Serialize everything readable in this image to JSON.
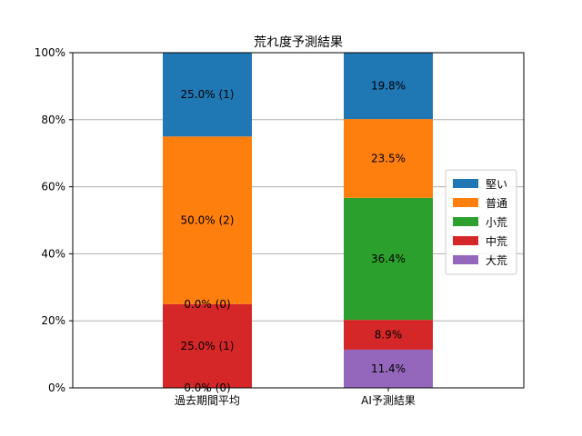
{
  "chart_data": {
    "type": "bar",
    "stacked": true,
    "title": "荒れ度予測結果",
    "xlabel": "",
    "ylabel": "",
    "categories": [
      "過去期間平均",
      "AI予測結果"
    ],
    "ylim": [
      0,
      100
    ],
    "yticks": [
      "0%",
      "20%",
      "40%",
      "60%",
      "80%",
      "100%"
    ],
    "grid": "horizontal",
    "legend_position": "right",
    "series": [
      {
        "name": "大荒",
        "color": "#9467bd",
        "values": [
          0.0,
          11.4
        ],
        "labels": [
          "0.0% (0)",
          "11.4%"
        ]
      },
      {
        "name": "中荒",
        "color": "#d62728",
        "values": [
          25.0,
          8.9
        ],
        "labels": [
          "25.0% (1)",
          "8.9%"
        ]
      },
      {
        "name": "小荒",
        "color": "#2ca02c",
        "values": [
          0.0,
          36.4
        ],
        "labels": [
          "0.0% (0)",
          "36.4%"
        ]
      },
      {
        "name": "普通",
        "color": "#ff7f0e",
        "values": [
          50.0,
          23.5
        ],
        "labels": [
          "50.0% (2)",
          "23.5%"
        ]
      },
      {
        "name": "堅い",
        "color": "#1f77b4",
        "values": [
          25.0,
          19.8
        ],
        "labels": [
          "25.0% (1)",
          "19.8%"
        ]
      }
    ],
    "legend_order": [
      "堅い",
      "普通",
      "小荒",
      "中荒",
      "大荒"
    ]
  }
}
